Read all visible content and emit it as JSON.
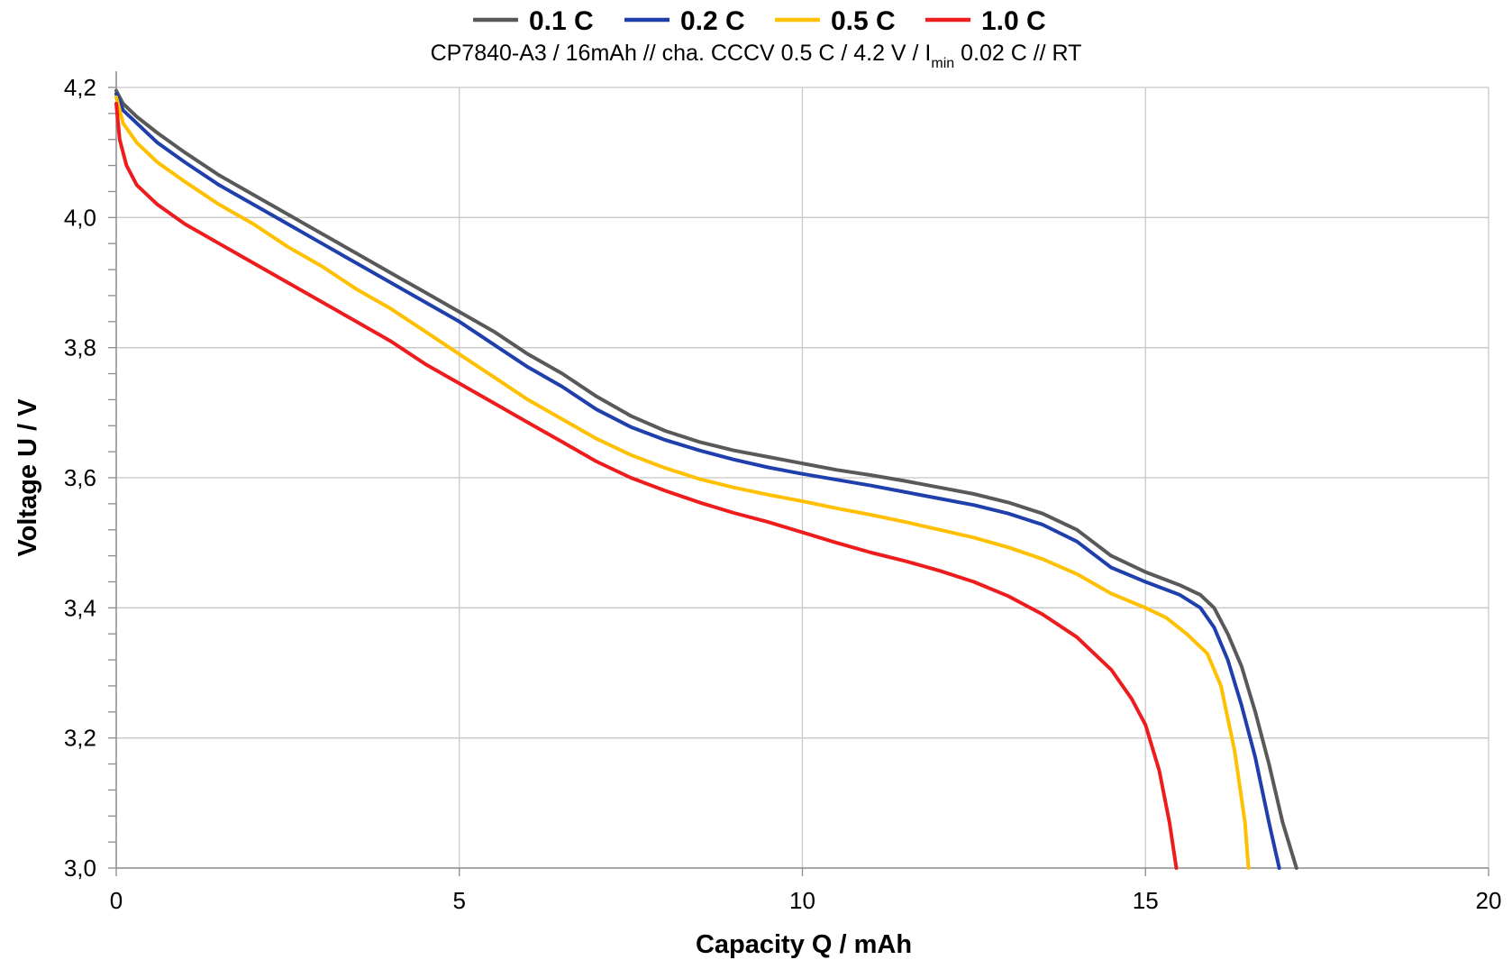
{
  "chart_data": {
    "type": "line",
    "subtitle": {
      "prefix": "CP7840-A3  / 16mAh // cha. CCCV 0.5 C / 4.2 V / I",
      "subscript": "min",
      "suffix": " 0.02 C // RT"
    },
    "xlabel": "Capacity Q / mAh",
    "ylabel": "Voltage U / V",
    "xlim": [
      0,
      20
    ],
    "ylim": [
      3.0,
      4.2
    ],
    "x_ticks": [
      {
        "value": 0,
        "label": "0"
      },
      {
        "value": 5,
        "label": "5"
      },
      {
        "value": 10,
        "label": "10"
      },
      {
        "value": 15,
        "label": "15"
      },
      {
        "value": 20,
        "label": "20"
      }
    ],
    "y_ticks": [
      {
        "value": 3.0,
        "label": "3,0"
      },
      {
        "value": 3.2,
        "label": "3,2"
      },
      {
        "value": 3.4,
        "label": "3,4"
      },
      {
        "value": 3.6,
        "label": "3,6"
      },
      {
        "value": 3.8,
        "label": "3,8"
      },
      {
        "value": 4.0,
        "label": "4,0"
      },
      {
        "value": 4.2,
        "label": "4,2"
      }
    ],
    "y_minor_step": 0.04,
    "grid": true,
    "legend_position": "top",
    "series": [
      {
        "name": "0.1 C",
        "color": "#595959",
        "points": [
          [
            0,
            4.195
          ],
          [
            0.1,
            4.175
          ],
          [
            0.3,
            4.155
          ],
          [
            0.6,
            4.13
          ],
          [
            1,
            4.1
          ],
          [
            1.5,
            4.065
          ],
          [
            2,
            4.035
          ],
          [
            2.5,
            4.005
          ],
          [
            3,
            3.975
          ],
          [
            3.5,
            3.945
          ],
          [
            4,
            3.915
          ],
          [
            4.5,
            3.885
          ],
          [
            5,
            3.855
          ],
          [
            5.5,
            3.825
          ],
          [
            6,
            3.79
          ],
          [
            6.5,
            3.76
          ],
          [
            7,
            3.725
          ],
          [
            7.5,
            3.695
          ],
          [
            8,
            3.672
          ],
          [
            8.5,
            3.655
          ],
          [
            9,
            3.642
          ],
          [
            9.5,
            3.632
          ],
          [
            10,
            3.622
          ],
          [
            10.5,
            3.612
          ],
          [
            11,
            3.604
          ],
          [
            11.5,
            3.595
          ],
          [
            12,
            3.585
          ],
          [
            12.5,
            3.575
          ],
          [
            13,
            3.562
          ],
          [
            13.5,
            3.545
          ],
          [
            14,
            3.52
          ],
          [
            14.5,
            3.48
          ],
          [
            15,
            3.455
          ],
          [
            15.5,
            3.435
          ],
          [
            15.8,
            3.42
          ],
          [
            16,
            3.4
          ],
          [
            16.2,
            3.36
          ],
          [
            16.4,
            3.31
          ],
          [
            16.6,
            3.24
          ],
          [
            16.8,
            3.16
          ],
          [
            17,
            3.07
          ],
          [
            17.2,
            3.0
          ]
        ]
      },
      {
        "name": "0.2 C",
        "color": "#1f3fad",
        "points": [
          [
            0,
            4.19
          ],
          [
            0.1,
            4.165
          ],
          [
            0.3,
            4.145
          ],
          [
            0.6,
            4.115
          ],
          [
            1,
            4.085
          ],
          [
            1.5,
            4.05
          ],
          [
            2,
            4.02
          ],
          [
            2.5,
            3.99
          ],
          [
            3,
            3.96
          ],
          [
            3.5,
            3.93
          ],
          [
            4,
            3.9
          ],
          [
            4.5,
            3.87
          ],
          [
            5,
            3.84
          ],
          [
            5.5,
            3.805
          ],
          [
            6,
            3.77
          ],
          [
            6.5,
            3.74
          ],
          [
            7,
            3.705
          ],
          [
            7.5,
            3.678
          ],
          [
            8,
            3.658
          ],
          [
            8.5,
            3.642
          ],
          [
            9,
            3.628
          ],
          [
            9.5,
            3.616
          ],
          [
            10,
            3.606
          ],
          [
            10.5,
            3.597
          ],
          [
            11,
            3.588
          ],
          [
            11.5,
            3.578
          ],
          [
            12,
            3.568
          ],
          [
            12.5,
            3.558
          ],
          [
            13,
            3.545
          ],
          [
            13.5,
            3.528
          ],
          [
            14,
            3.502
          ],
          [
            14.5,
            3.462
          ],
          [
            15,
            3.44
          ],
          [
            15.5,
            3.42
          ],
          [
            15.8,
            3.4
          ],
          [
            16,
            3.37
          ],
          [
            16.2,
            3.32
          ],
          [
            16.4,
            3.25
          ],
          [
            16.6,
            3.17
          ],
          [
            16.8,
            3.07
          ],
          [
            16.95,
            3.0
          ]
        ]
      },
      {
        "name": "0.5 C",
        "color": "#ffc000",
        "points": [
          [
            0,
            4.185
          ],
          [
            0.1,
            4.145
          ],
          [
            0.3,
            4.115
          ],
          [
            0.6,
            4.085
          ],
          [
            1,
            4.055
          ],
          [
            1.5,
            4.02
          ],
          [
            2,
            3.99
          ],
          [
            2.5,
            3.955
          ],
          [
            3,
            3.925
          ],
          [
            3.5,
            3.89
          ],
          [
            4,
            3.86
          ],
          [
            4.5,
            3.825
          ],
          [
            5,
            3.79
          ],
          [
            5.5,
            3.755
          ],
          [
            6,
            3.72
          ],
          [
            6.5,
            3.69
          ],
          [
            7,
            3.66
          ],
          [
            7.5,
            3.635
          ],
          [
            8,
            3.615
          ],
          [
            8.5,
            3.598
          ],
          [
            9,
            3.585
          ],
          [
            9.5,
            3.574
          ],
          [
            10,
            3.564
          ],
          [
            10.5,
            3.553
          ],
          [
            11,
            3.543
          ],
          [
            11.5,
            3.532
          ],
          [
            12,
            3.52
          ],
          [
            12.5,
            3.508
          ],
          [
            13,
            3.493
          ],
          [
            13.5,
            3.475
          ],
          [
            14,
            3.452
          ],
          [
            14.5,
            3.422
          ],
          [
            15,
            3.4
          ],
          [
            15.3,
            3.385
          ],
          [
            15.6,
            3.36
          ],
          [
            15.9,
            3.33
          ],
          [
            16.1,
            3.28
          ],
          [
            16.3,
            3.18
          ],
          [
            16.45,
            3.07
          ],
          [
            16.5,
            3.0
          ]
        ]
      },
      {
        "name": "1.0 C",
        "color": "#ee1c1c",
        "points": [
          [
            0,
            4.175
          ],
          [
            0.05,
            4.12
          ],
          [
            0.15,
            4.08
          ],
          [
            0.3,
            4.05
          ],
          [
            0.6,
            4.02
          ],
          [
            1,
            3.99
          ],
          [
            1.5,
            3.96
          ],
          [
            2,
            3.93
          ],
          [
            2.5,
            3.9
          ],
          [
            3,
            3.87
          ],
          [
            3.5,
            3.84
          ],
          [
            4,
            3.81
          ],
          [
            4.5,
            3.775
          ],
          [
            5,
            3.745
          ],
          [
            5.5,
            3.715
          ],
          [
            6,
            3.685
          ],
          [
            6.5,
            3.655
          ],
          [
            7,
            3.625
          ],
          [
            7.5,
            3.6
          ],
          [
            8,
            3.58
          ],
          [
            8.5,
            3.562
          ],
          [
            9,
            3.546
          ],
          [
            9.5,
            3.532
          ],
          [
            10,
            3.516
          ],
          [
            10.5,
            3.5
          ],
          [
            11,
            3.485
          ],
          [
            11.5,
            3.472
          ],
          [
            12,
            3.457
          ],
          [
            12.5,
            3.44
          ],
          [
            13,
            3.418
          ],
          [
            13.5,
            3.39
          ],
          [
            14,
            3.355
          ],
          [
            14.5,
            3.305
          ],
          [
            14.8,
            3.26
          ],
          [
            15,
            3.22
          ],
          [
            15.2,
            3.15
          ],
          [
            15.35,
            3.07
          ],
          [
            15.45,
            3.0
          ]
        ]
      }
    ]
  }
}
